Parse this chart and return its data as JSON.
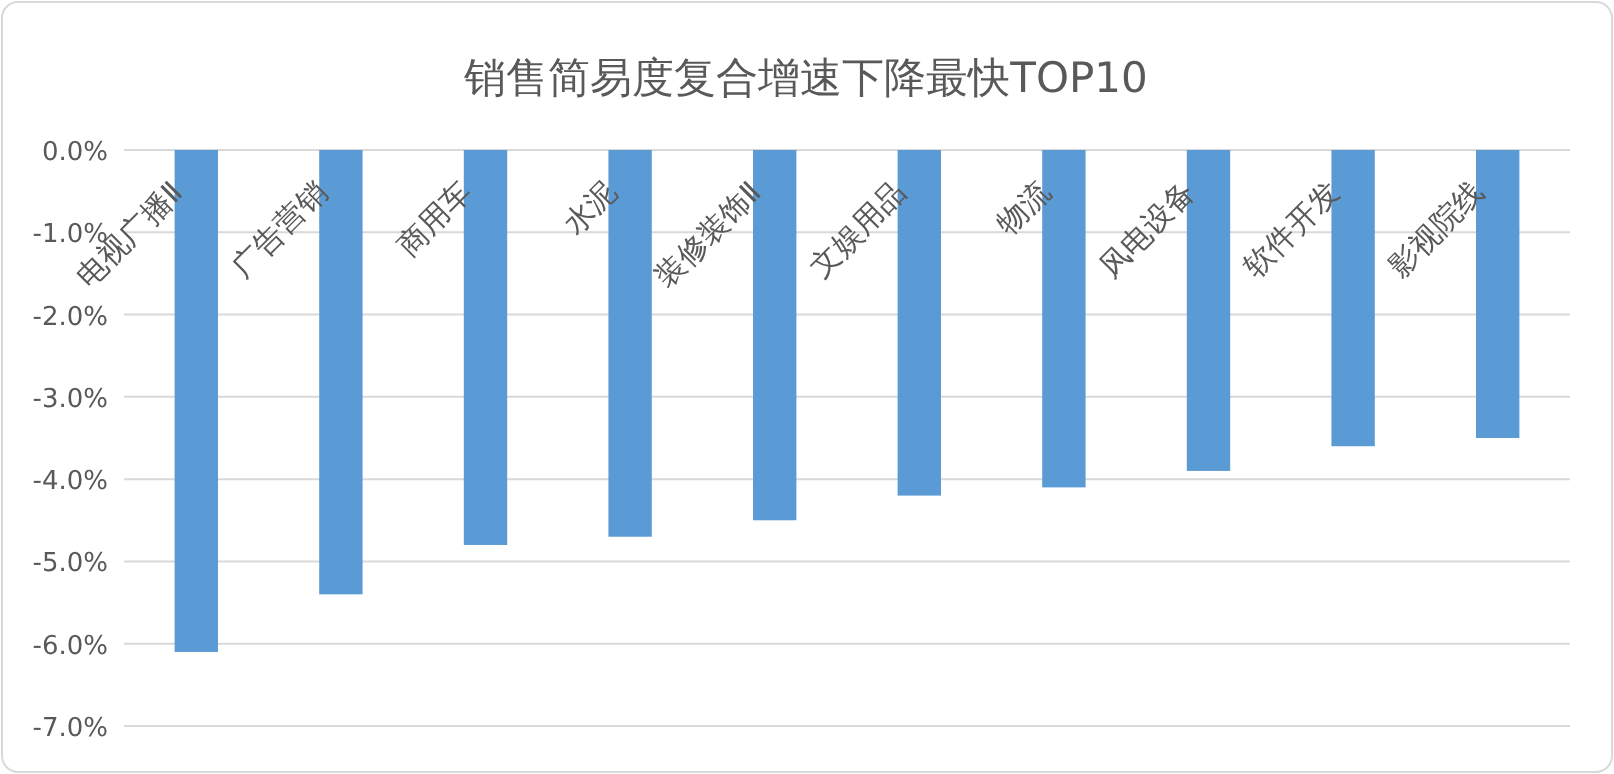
{
  "chart_data": {
    "type": "bar",
    "title": "销售简易度复合增速下降最快TOP10",
    "categories": [
      "电视广播Ⅱ",
      "广告营销",
      "商用车",
      "水泥",
      "装修装饰Ⅱ",
      "文娱用品",
      "物流",
      "风电设备",
      "软件开发",
      "影视院线"
    ],
    "values": [
      -6.1,
      -5.4,
      -4.8,
      -4.7,
      -4.5,
      -4.2,
      -4.1,
      -3.9,
      -3.6,
      -3.5
    ],
    "color": "#5b9bd5",
    "ylim": [
      -7,
      0
    ],
    "yticks": [
      {
        "value": 0,
        "label": "0.0%"
      },
      {
        "value": -1,
        "label": "-1.0%"
      },
      {
        "value": -2,
        "label": "-2.0%"
      },
      {
        "value": -3,
        "label": "-3.0%"
      },
      {
        "value": -4,
        "label": "-4.0%"
      },
      {
        "value": -5,
        "label": "-5.0%"
      },
      {
        "value": -6,
        "label": "-6.0%"
      },
      {
        "value": -7,
        "label": "-7.0%"
      }
    ],
    "grid": "y"
  }
}
